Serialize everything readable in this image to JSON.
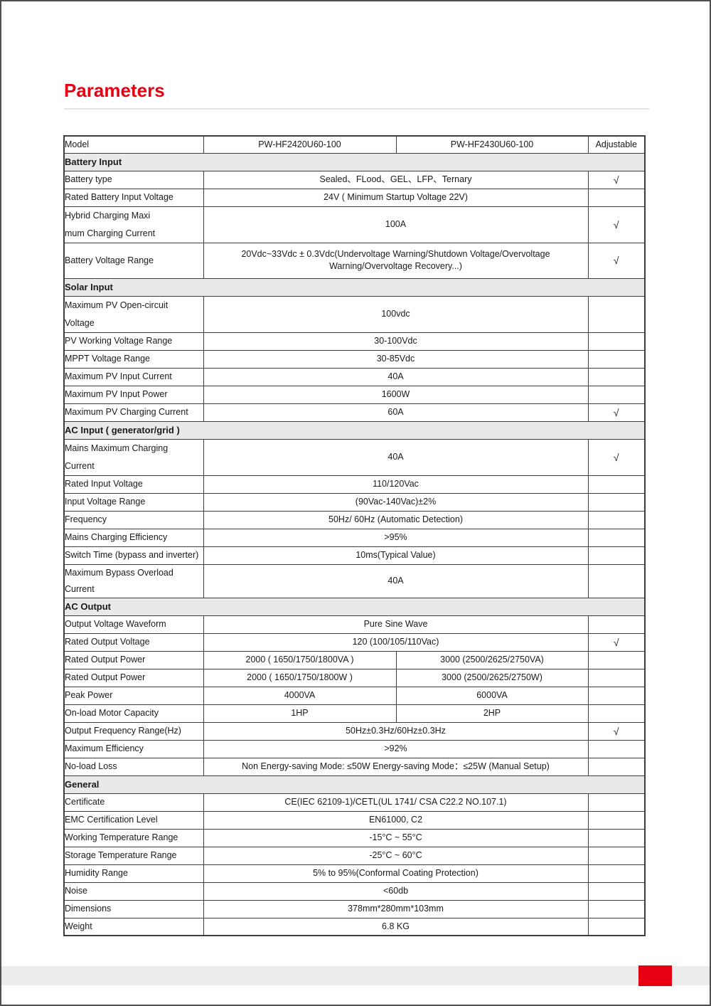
{
  "page": {
    "title": "Parameters",
    "accent_red": "#e60012",
    "table_border_color": "#3d3d3d",
    "section_header_bg": "#e9e9e9",
    "footer_band_color": "#ececec"
  },
  "table": {
    "columns": [
      "Model",
      "PW-HF2420U60-100",
      "PW-HF2430U60-100",
      "Adjustable"
    ],
    "check_glyph": "√",
    "rows": [
      {
        "kind": "section",
        "label": "Battery Input"
      },
      {
        "kind": "merged",
        "label": "Battery type",
        "value": "Sealed、FLood、GEL、LFP、Ternary",
        "adj": "√"
      },
      {
        "kind": "merged",
        "label": "Rated Battery Input Voltage",
        "value": "24V ( Minimum Startup Voltage 22V)",
        "adj": ""
      },
      {
        "kind": "merged",
        "tall": true,
        "label": [
          "Hybrid Charging Maxi",
          "mum Charging Current"
        ],
        "value": "100A",
        "adj": "√"
      },
      {
        "kind": "merged",
        "tall": true,
        "label": "Battery Voltage Range",
        "value": "20Vdc~33Vdc ± 0.3Vdc(Undervoltage Warning/Shutdown Voltage/Overvoltage Warning/Overvoltage Recovery...)",
        "adj": "√"
      },
      {
        "kind": "section",
        "label": "Solar Input"
      },
      {
        "kind": "merged",
        "tall": true,
        "label": [
          "Maximum PV Open-circuit",
          "Voltage"
        ],
        "value": "100vdc",
        "adj": ""
      },
      {
        "kind": "merged",
        "label": "PV Working Voltage Range",
        "value": "30-100Vdc",
        "adj": ""
      },
      {
        "kind": "merged",
        "label": "MPPT Voltage Range",
        "value": "30-85Vdc",
        "adj": ""
      },
      {
        "kind": "merged",
        "label": "Maximum PV Input Current",
        "value": "40A",
        "adj": ""
      },
      {
        "kind": "merged",
        "label": "Maximum PV Input Power",
        "value": "1600W",
        "adj": ""
      },
      {
        "kind": "merged",
        "label": "Maximum PV Charging Current",
        "value": "60A",
        "adj": "√"
      },
      {
        "kind": "section",
        "label": "AC Input ( generator/grid )"
      },
      {
        "kind": "merged",
        "tall": true,
        "label": [
          "Mains Maximum Charging",
          "Current"
        ],
        "value": "40A",
        "adj": "√"
      },
      {
        "kind": "merged",
        "label": "Rated Input Voltage",
        "value": "110/120Vac",
        "adj": ""
      },
      {
        "kind": "merged",
        "label": "Input Voltage Range",
        "value": "(90Vac-140Vac)±2%",
        "adj": ""
      },
      {
        "kind": "merged",
        "label": "Frequency",
        "value": "50Hz/ 60Hz (Automatic Detection)",
        "adj": ""
      },
      {
        "kind": "merged",
        "label": "Mains Charging Efficiency",
        "value": ">95%",
        "adj": ""
      },
      {
        "kind": "merged",
        "label": "Switch Time (bypass and inverter)",
        "value": "10ms(Typical Value)",
        "adj": ""
      },
      {
        "kind": "merged",
        "label": "Maximum Bypass Overload Current",
        "value": "40A",
        "adj": ""
      },
      {
        "kind": "section",
        "label": "AC Output"
      },
      {
        "kind": "merged",
        "label": "Output Voltage Waveform",
        "value": "Pure Sine Wave",
        "adj": ""
      },
      {
        "kind": "merged",
        "label": "Rated Output Voltage",
        "value": "120 (100/105/110Vac)",
        "adj": "√"
      },
      {
        "kind": "split",
        "label": "Rated Output Power",
        "value1": "2000 ( 1650/1750/1800VA )",
        "value2": "3000  (2500/2625/2750VA)",
        "adj": ""
      },
      {
        "kind": "split",
        "label": "Rated Output Power",
        "value1": "2000 ( 1650/1750/1800W )",
        "value2": "3000  (2500/2625/2750W)",
        "adj": ""
      },
      {
        "kind": "split",
        "label": "Peak Power",
        "value1": "4000VA",
        "value2": "6000VA",
        "adj": ""
      },
      {
        "kind": "split",
        "label": "On-load Motor Capacity",
        "value1": "1HP",
        "value2": "2HP",
        "adj": ""
      },
      {
        "kind": "merged",
        "label": "Output Frequency Range(Hz)",
        "value": "50Hz±0.3Hz/60Hz±0.3Hz",
        "adj": "√"
      },
      {
        "kind": "merged",
        "label": "Maximum Efficiency",
        "value": ">92%",
        "adj": ""
      },
      {
        "kind": "merged",
        "label": "No-load Loss",
        "value": "Non Energy-saving Mode: ≤50W Energy-saving Mode：≤25W (Manual Setup)",
        "adj": ""
      },
      {
        "kind": "section",
        "label": "General"
      },
      {
        "kind": "merged",
        "label": "Certificate",
        "value": "CE(IEC 62109-1)/CETL(UL 1741/ CSA C22.2 NO.107.1)",
        "adj": ""
      },
      {
        "kind": "merged",
        "label": "EMC Certification Level",
        "value": "EN61000, C2",
        "adj": ""
      },
      {
        "kind": "merged",
        "label": "Working Temperature Range",
        "value": "-15°C ~ 55°C",
        "adj": ""
      },
      {
        "kind": "merged",
        "label": "Storage Temperature Range",
        "value": "-25°C ~ 60°C",
        "adj": ""
      },
      {
        "kind": "merged",
        "label": "Humidity Range",
        "value": "5% to 95%(Conformal Coating Protection)",
        "adj": ""
      },
      {
        "kind": "merged",
        "label": "Noise",
        "value": "<60db",
        "adj": ""
      },
      {
        "kind": "merged",
        "label": "Dimensions",
        "value": "378mm*280mm*103mm",
        "adj": ""
      },
      {
        "kind": "merged",
        "label": "Weight",
        "value": "6.8 KG",
        "adj": ""
      }
    ]
  }
}
